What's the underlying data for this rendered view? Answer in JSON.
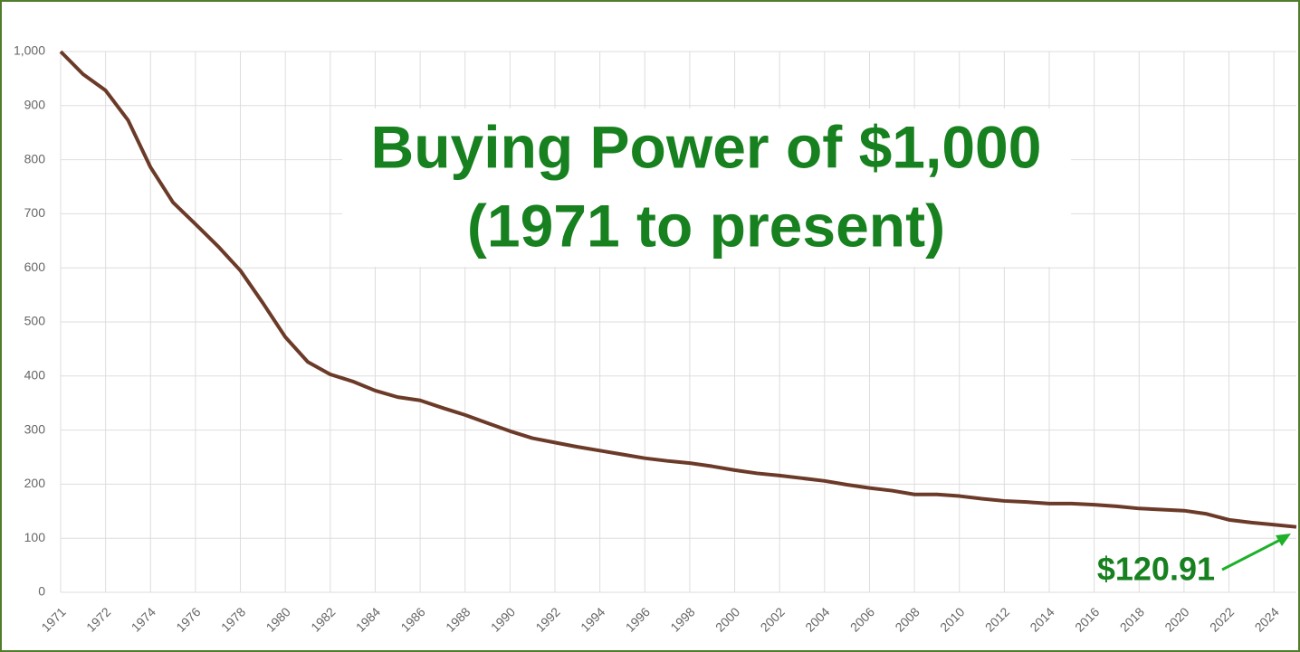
{
  "chart_data": {
    "type": "line",
    "title": "Buying Power of $1,000",
    "subtitle": "(1971 to present)",
    "categories": [
      "1971",
      null,
      "1972",
      null,
      "1974",
      null,
      "1976",
      null,
      "1978",
      null,
      "1980",
      null,
      "1982",
      null,
      "1984",
      null,
      "1986",
      null,
      "1988",
      null,
      "1990",
      null,
      "1992",
      null,
      "1994",
      null,
      "1996",
      null,
      "1998",
      null,
      "2000",
      null,
      "2002",
      null,
      "2004",
      null,
      "2006",
      null,
      "2008",
      null,
      "2010",
      null,
      "2012",
      null,
      "2014",
      null,
      "2016",
      null,
      "2018",
      null,
      "2020",
      null,
      "2022",
      null,
      "2024",
      null
    ],
    "series": [
      {
        "name": "Buying Power",
        "color": "#6b3a28",
        "values": [
          1000,
          958,
          928,
          873,
          786,
          721,
          681,
          640,
          595,
          535,
          472,
          426,
          403,
          390,
          373,
          361,
          355,
          341,
          328,
          313,
          298,
          285,
          277,
          269,
          262,
          255,
          248,
          243,
          239,
          233,
          226,
          220,
          216,
          211,
          206,
          199,
          193,
          188,
          181,
          181,
          178,
          173,
          169,
          167,
          164,
          164,
          162,
          159,
          155,
          153,
          151,
          145,
          134,
          129,
          125,
          120.91
        ]
      }
    ],
    "annotations": [
      {
        "text": "$120.91"
      }
    ],
    "ylim": [
      0,
      1000
    ],
    "yticks": [
      0,
      100,
      200,
      300,
      400,
      500,
      600,
      700,
      800,
      900,
      {
        "value": 1000,
        "label": "1,000"
      }
    ],
    "grid": true
  }
}
